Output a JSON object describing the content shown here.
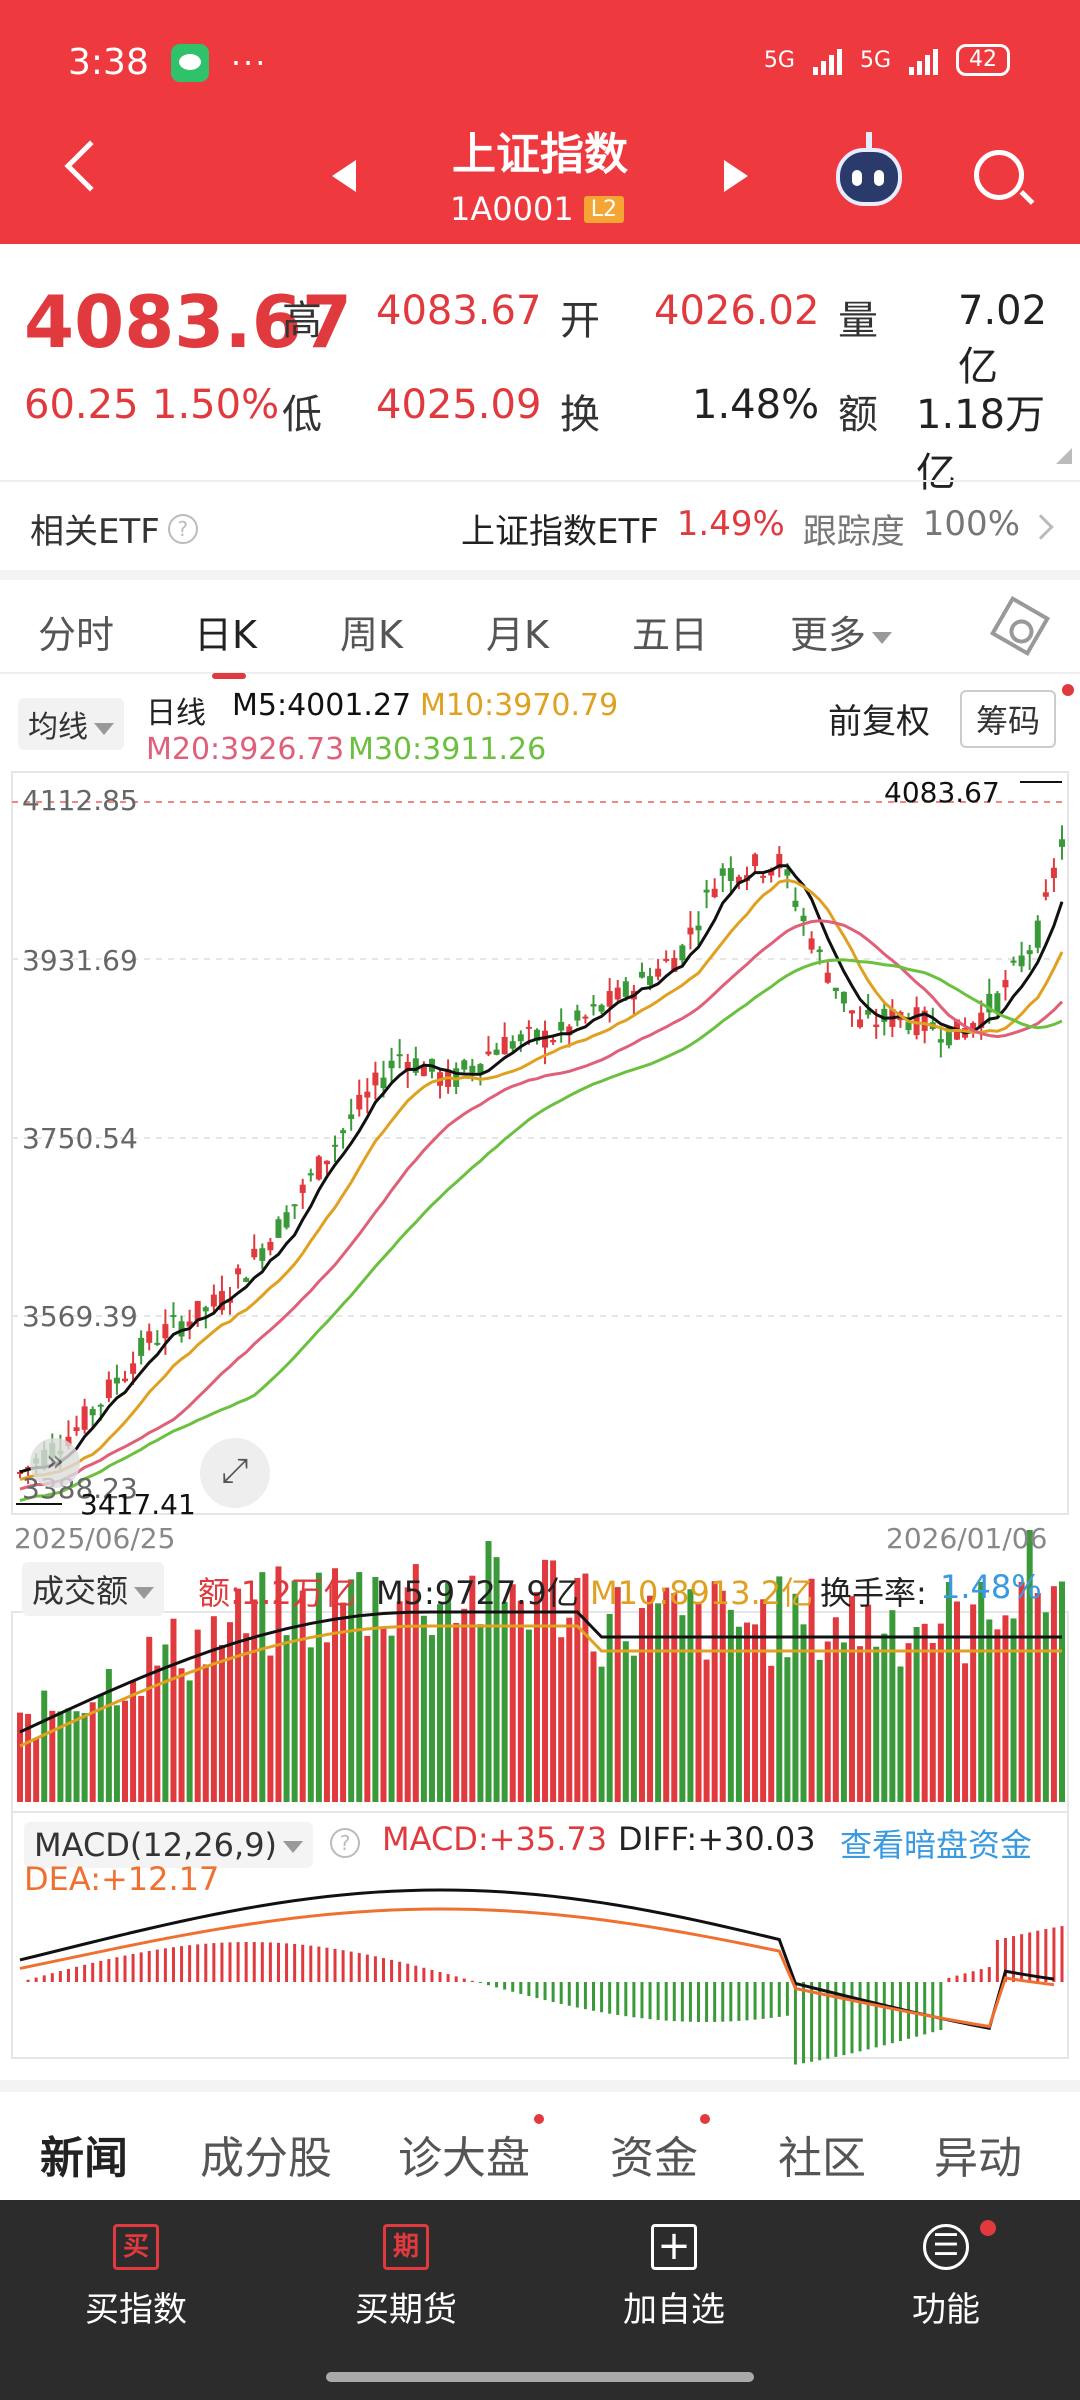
{
  "status": {
    "time": "3:38",
    "signal1": "5G",
    "signal2": "5G",
    "battery": "42"
  },
  "header": {
    "title": "上证指数",
    "code": "1A0001",
    "badge": "L2"
  },
  "quote": {
    "price": "4083.67",
    "change": "60.25",
    "pct": "1.50%",
    "high_label": "高",
    "high": "4083.67",
    "open_label": "开",
    "open": "4026.02",
    "vol_label": "量",
    "vol": "7.02亿",
    "low_label": "低",
    "low": "4025.09",
    "turnover_label": "换",
    "turnover": "1.48%",
    "amount_label": "额",
    "amount": "1.18万亿"
  },
  "etf": {
    "label": "相关ETF",
    "name": "上证指数ETF",
    "pct": "1.49%",
    "track_label": "跟踪度",
    "track": "100%"
  },
  "ktabs": [
    "分时",
    "日K",
    "周K",
    "月K",
    "五日",
    "更多"
  ],
  "ma": {
    "select": "均线",
    "period": "日线",
    "m5": "M5:4001.27",
    "m10": "M10:3970.79",
    "m20": "M20:3926.73",
    "m30": "M30:3911.26",
    "adjust": "前复权",
    "chips": "筹码"
  },
  "kchart": {
    "yticks": [
      "4112.85",
      "3931.69",
      "3750.54",
      "3569.39",
      "3388.23"
    ],
    "high_label": "4083.67",
    "low_label": "3417.41",
    "date_start": "2025/06/25",
    "date_end": "2026/01/06"
  },
  "volume": {
    "select": "成交额",
    "amount": "额:1.2万亿",
    "m5": "M5:9727.9亿",
    "m10": "M10:8913.2亿",
    "turnover_label": "换手率:",
    "turnover": "1.48%"
  },
  "macd": {
    "select": "MACD(12,26,9)",
    "macd": "MACD:+35.73",
    "diff": "DIFF:+30.03",
    "dea": "DEA:+12.17",
    "link": "查看暗盘资金"
  },
  "news_tabs": [
    "新闻",
    "成分股",
    "诊大盘",
    "资金",
    "社区",
    "异动"
  ],
  "bottom_nav": [
    {
      "icon": "买",
      "label": "买指数"
    },
    {
      "icon": "期",
      "label": "买期货"
    },
    {
      "icon": "+",
      "label": "加自选"
    },
    {
      "icon": "☰",
      "label": "功能"
    }
  ],
  "colors": {
    "up": "#e03a3e",
    "down": "#3a9a3a",
    "m5": "#111111",
    "m10": "#e0a020",
    "m20": "#e0607a",
    "m30": "#6cc040",
    "dea": "#f07030"
  }
}
